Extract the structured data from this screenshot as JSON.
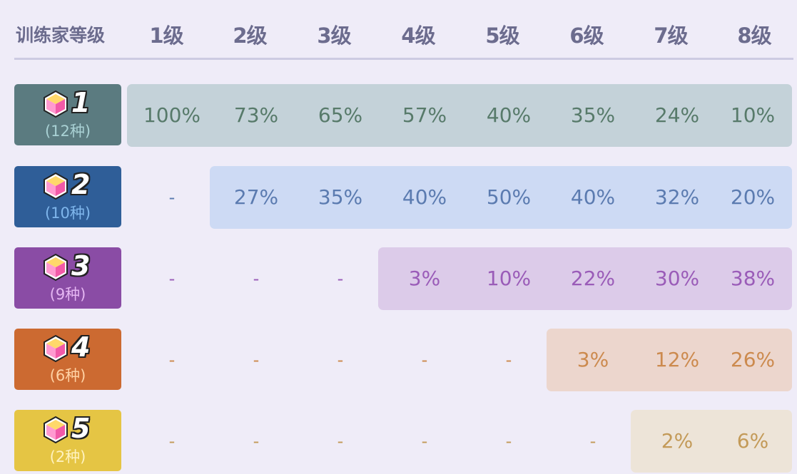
{
  "header": {
    "first": "训练家等级",
    "levels": [
      "1级",
      "2级",
      "3级",
      "4级",
      "5级",
      "6级",
      "7级",
      "8级"
    ]
  },
  "gem_icon": "pink-gem-icon",
  "tiers": [
    {
      "tier": "1",
      "count": "(12种)",
      "badge_color": "#5b7b80",
      "count_color": "#a9d1d4",
      "band_color": "#c4d2d9",
      "text_color": "#577a6a",
      "values": [
        "100%",
        "73%",
        "65%",
        "57%",
        "40%",
        "35%",
        "24%",
        "10%"
      ]
    },
    {
      "tier": "2",
      "count": "(10种)",
      "badge_color": "#2f5e98",
      "count_color": "#7fb6ec",
      "band_color": "#cddaf4",
      "text_color": "#5b7bb0",
      "values": [
        "-",
        "27%",
        "35%",
        "40%",
        "50%",
        "40%",
        "32%",
        "20%"
      ]
    },
    {
      "tier": "3",
      "count": "(9种)",
      "badge_color": "#8a4ca5",
      "count_color": "#e5b6f2",
      "band_color": "#dccbe9",
      "text_color": "#9a5cb8",
      "values": [
        "-",
        "-",
        "-",
        "3%",
        "10%",
        "22%",
        "30%",
        "38%"
      ]
    },
    {
      "tier": "4",
      "count": "(6种)",
      "badge_color": "#cc6a31",
      "count_color": "#ffd2a4",
      "band_color": "#ecd6cd",
      "text_color": "#cc8a4e",
      "values": [
        "-",
        "-",
        "-",
        "-",
        "-",
        "3%",
        "12%",
        "26%"
      ]
    },
    {
      "tier": "5",
      "count": "(2种)",
      "badge_color": "#e5c544",
      "count_color": "#fff2bf",
      "band_color": "#ede4d8",
      "text_color": "#c39a58",
      "values": [
        "-",
        "-",
        "-",
        "-",
        "-",
        "-",
        "2%",
        "6%"
      ]
    }
  ]
}
